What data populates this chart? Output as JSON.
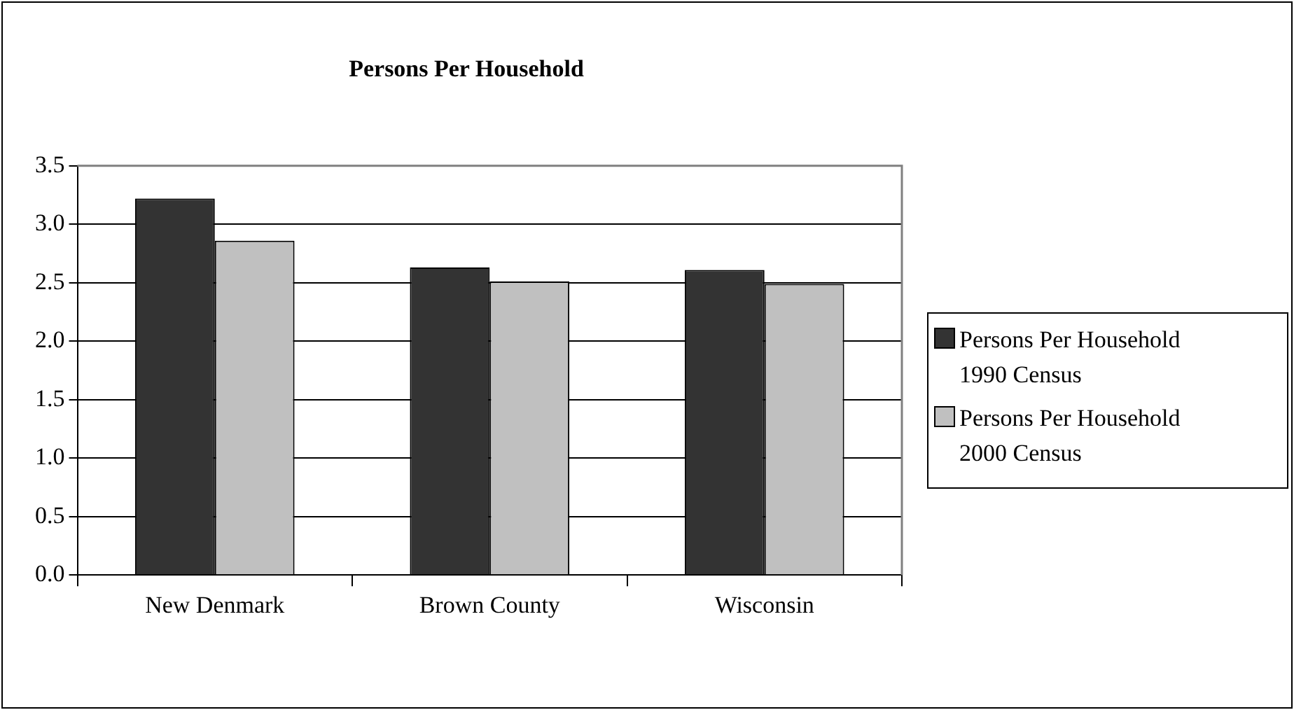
{
  "chart_data": {
    "type": "bar",
    "title": "Persons Per Household",
    "categories": [
      "New Denmark",
      "Brown County",
      "Wisconsin"
    ],
    "series": [
      {
        "name": "Persons Per Household 1990 Census",
        "color": "#333333",
        "values": [
          3.22,
          2.63,
          2.61
        ]
      },
      {
        "name": "Persons Per Household 2000 Census",
        "color": "#c0c0c0",
        "values": [
          2.86,
          2.51,
          2.49
        ]
      }
    ],
    "ylim": [
      0,
      3.5
    ],
    "yticks": [
      {
        "value": 0,
        "label": "0.0"
      },
      0.5,
      {
        "value": 1,
        "label": "1.0"
      },
      1.5,
      {
        "value": 2,
        "label": "2.0"
      },
      2.5,
      {
        "value": 3,
        "label": "3.0"
      },
      3.5
    ],
    "grid": "y",
    "legend": "right"
  }
}
